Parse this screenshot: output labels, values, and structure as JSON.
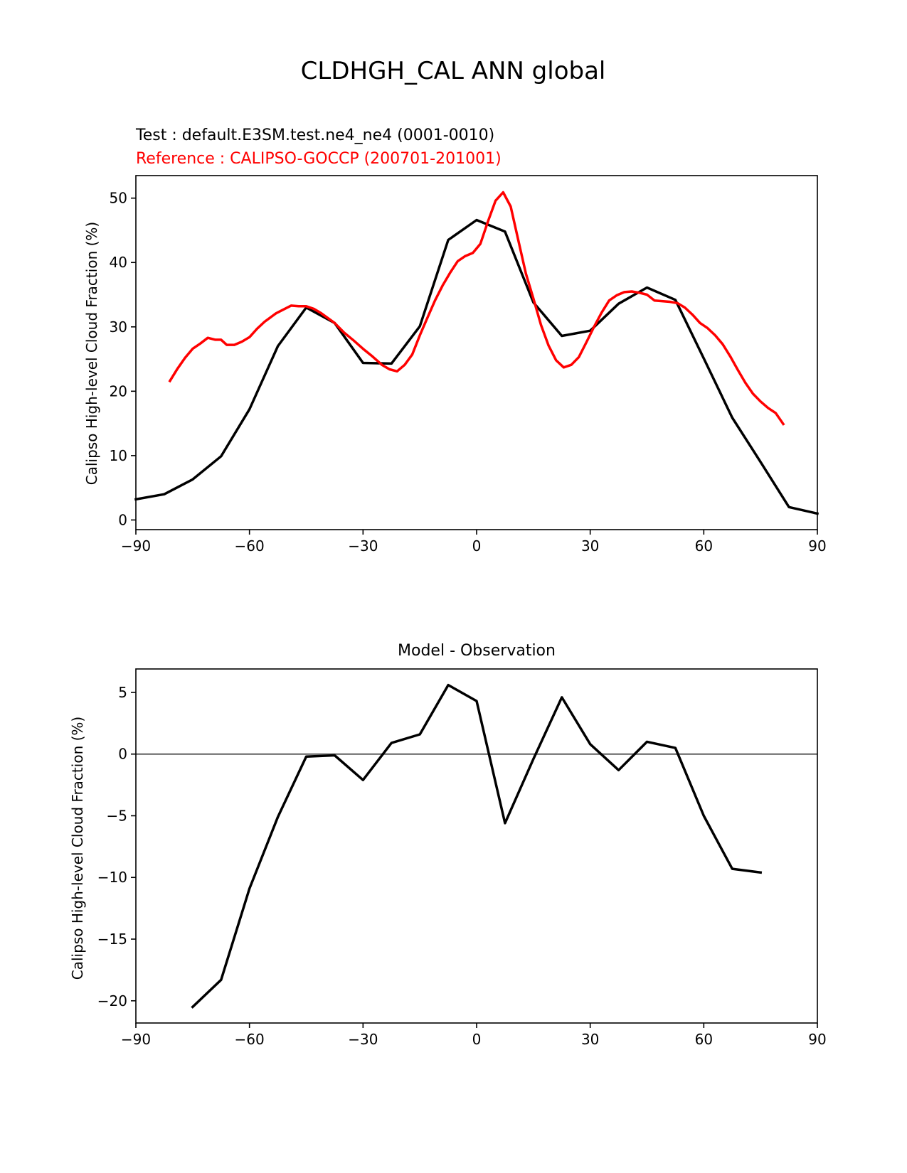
{
  "figure": {
    "title": "CLDHGH_CAL ANN global"
  },
  "colors": {
    "test": "#000000",
    "reference": "#ff0000",
    "diff": "#000000",
    "zero_line": "#808080",
    "axes": "#000000"
  },
  "chart_data": [
    {
      "type": "line",
      "id": "top",
      "title": "",
      "test_label": "Test : default.E3SM.test.ne4_ne4 (0001-0010)",
      "reference_label": "Reference : CALIPSO-GOCCP (200701-201001)",
      "xlabel": "",
      "ylabel": "Calipso High-level Cloud Fraction (%)",
      "xlim": [
        -90,
        90
      ],
      "ylim": [
        -1.5,
        53.5
      ],
      "xticks": [
        -90,
        -60,
        -30,
        0,
        30,
        60,
        90
      ],
      "xtick_labels": [
        "−90",
        "−60",
        "−30",
        "0",
        "30",
        "60",
        "90"
      ],
      "yticks": [
        0,
        10,
        20,
        30,
        40,
        50
      ],
      "ytick_labels": [
        "0",
        "10",
        "20",
        "30",
        "40",
        "50"
      ],
      "series": [
        {
          "name": "Test",
          "color": "#000000",
          "x": [
            -90,
            -82.5,
            -75,
            -67.5,
            -60,
            -52.5,
            -45,
            -37.5,
            -30,
            -22.5,
            -15,
            -7.5,
            0,
            7.5,
            15,
            22.5,
            30,
            37.5,
            45,
            52.5,
            60,
            67.5,
            75,
            82.5,
            90
          ],
          "y": [
            3.2,
            4.0,
            6.3,
            9.9,
            17.2,
            27.0,
            33.0,
            30.6,
            24.4,
            24.3,
            30.1,
            43.5,
            46.6,
            44.8,
            33.8,
            28.6,
            29.4,
            33.6,
            36.1,
            34.2,
            25.1,
            15.9,
            9.0,
            2.0,
            1.0
          ]
        },
        {
          "name": "Reference",
          "color": "#ff0000",
          "x": [
            -81,
            -79,
            -77,
            -75,
            -73,
            -71,
            -69,
            -67.5,
            -66,
            -64,
            -62,
            -60,
            -58,
            -56,
            -53,
            -51,
            -49,
            -47,
            -45,
            -43,
            -41,
            -37.5,
            -35,
            -32.5,
            -30,
            -27.5,
            -25,
            -23,
            -21,
            -19,
            -17,
            -15,
            -13,
            -11,
            -9,
            -7,
            -5,
            -3,
            -1,
            1,
            3,
            5,
            7,
            9,
            11,
            13,
            15,
            17,
            19,
            21,
            23,
            25,
            27,
            29,
            31,
            33,
            35,
            37,
            39,
            41,
            43,
            45,
            47,
            49,
            51,
            53,
            55,
            57,
            59,
            61,
            63,
            65,
            67,
            69,
            71,
            73,
            75,
            77,
            79,
            81
          ],
          "y": [
            21.6,
            23.5,
            25.2,
            26.6,
            27.4,
            28.3,
            28.0,
            28.0,
            27.2,
            27.2,
            27.7,
            28.4,
            29.7,
            30.8,
            32.1,
            32.7,
            33.3,
            33.2,
            33.2,
            32.8,
            32.1,
            30.6,
            29.1,
            27.9,
            26.6,
            25.4,
            24.1,
            23.4,
            23.1,
            24.1,
            25.7,
            28.7,
            31.4,
            34.1,
            36.4,
            38.4,
            40.2,
            41.0,
            41.5,
            42.9,
            46.4,
            49.6,
            50.9,
            48.7,
            43.5,
            38.3,
            34.4,
            30.3,
            27.1,
            24.8,
            23.7,
            24.1,
            25.3,
            27.6,
            30.0,
            32.2,
            34.1,
            34.9,
            35.4,
            35.5,
            35.3,
            35.0,
            34.1,
            34.0,
            33.9,
            33.7,
            33.0,
            31.9,
            30.6,
            29.8,
            28.7,
            27.3,
            25.4,
            23.3,
            21.3,
            19.6,
            18.4,
            17.4,
            16.6,
            14.9
          ]
        }
      ]
    },
    {
      "type": "line",
      "id": "bottom",
      "title": "Model - Observation",
      "xlabel": "",
      "ylabel": "Calipso High-level Cloud Fraction (%)",
      "xlim": [
        -90,
        90
      ],
      "ylim": [
        -21.8,
        6.9
      ],
      "xticks": [
        -90,
        -60,
        -30,
        0,
        30,
        60,
        90
      ],
      "xtick_labels": [
        "−90",
        "−60",
        "−30",
        "0",
        "30",
        "60",
        "90"
      ],
      "yticks": [
        5,
        0,
        -5,
        -10,
        -15,
        -20
      ],
      "ytick_labels": [
        "5",
        "0",
        "−5",
        "−10",
        "−15",
        "−20"
      ],
      "zero_line": 0,
      "series": [
        {
          "name": "Model - Observation",
          "color": "#000000",
          "x": [
            -75,
            -67.5,
            -60,
            -52.5,
            -45,
            -37.5,
            -30,
            -22.5,
            -15,
            -7.5,
            0,
            7.5,
            15,
            22.5,
            30,
            37.5,
            45,
            52.5,
            60,
            67.5,
            75
          ],
          "y": [
            -20.5,
            -18.3,
            -10.9,
            -5.1,
            -0.2,
            -0.1,
            -2.1,
            0.9,
            1.6,
            5.6,
            4.3,
            -5.6,
            -0.4,
            4.6,
            0.8,
            -1.3,
            1.0,
            0.5,
            -5.0,
            -9.3,
            -9.6
          ]
        }
      ]
    }
  ]
}
